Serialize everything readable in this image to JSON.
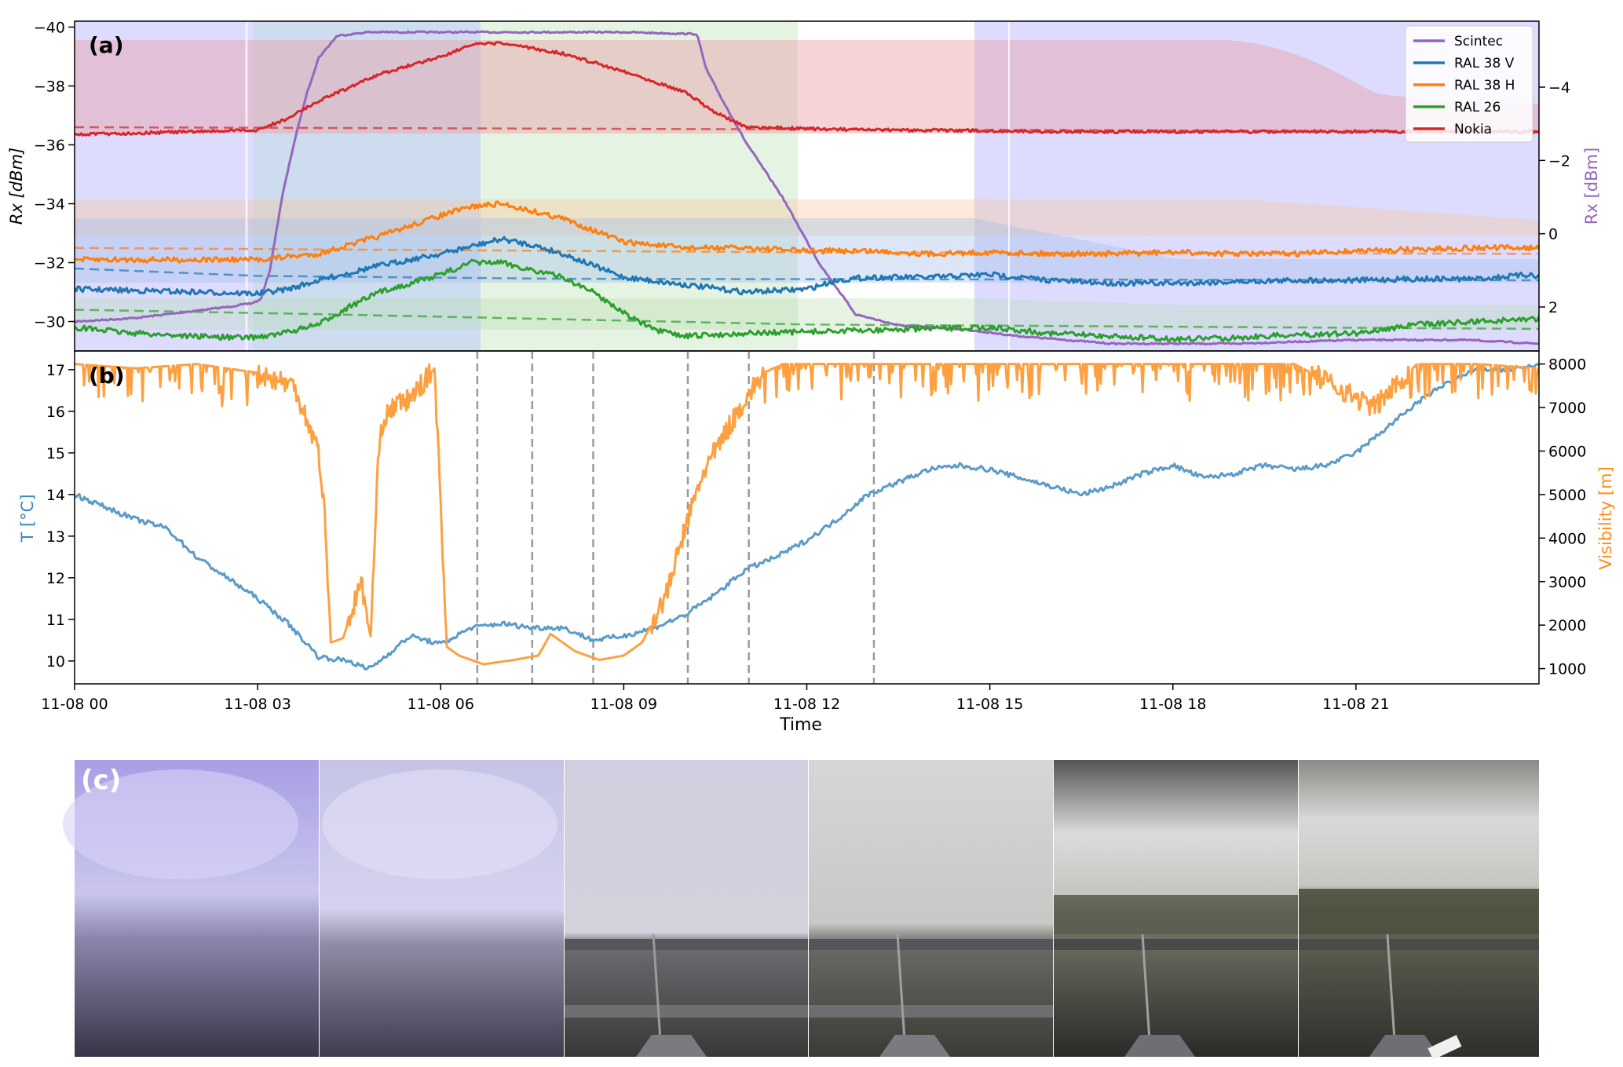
{
  "chart_data": [
    {
      "panel_label": "(a)",
      "type": "line",
      "xlim": [
        "11-08 00:00",
        "11-09 00:00"
      ],
      "ylim_left": [
        -29,
        -40.2
      ],
      "ylim_right": [
        3.2,
        -5.8
      ],
      "ylabel_left": "Rx [dBm]",
      "ylabel_right": "Rx [dBm]",
      "yticks_left": [
        -40,
        -38,
        -36,
        -34,
        -32,
        -30
      ],
      "yticks_right": [
        -4,
        -2,
        0,
        2
      ],
      "legend": {
        "placement": "top-right",
        "entries": [
          "Scintec",
          "RAL 38 V",
          "RAL 38 H",
          "RAL 26",
          "Nokia"
        ]
      },
      "series": [
        {
          "name": "Scintec",
          "axis": "right",
          "color": "#9467bd",
          "x": [
            0,
            1,
            2,
            2.5,
            2.9,
            3.05,
            3.2,
            3.4,
            3.6,
            3.8,
            4.0,
            4.3,
            4.8,
            6,
            7,
            8,
            9,
            10.2,
            10.35,
            10.6,
            11,
            11.6,
            12.2,
            12.8,
            13.5,
            14.5,
            15.5,
            17,
            19,
            21,
            22.8,
            24
          ],
          "y": [
            2.4,
            2.3,
            2.1,
            2.0,
            1.9,
            1.8,
            1.0,
            -1.0,
            -2.5,
            -3.8,
            -4.8,
            -5.4,
            -5.5,
            -5.5,
            -5.5,
            -5.5,
            -5.5,
            -5.45,
            -4.5,
            -3.7,
            -2.5,
            -1.0,
            0.8,
            2.2,
            2.5,
            2.6,
            2.8,
            3.0,
            3.0,
            2.9,
            2.9,
            3.0
          ]
        },
        {
          "name": "RAL 38 V",
          "axis": "left",
          "color": "#1f77b4",
          "x": [
            0,
            1,
            2,
            3,
            3.5,
            4,
            5,
            6,
            6.5,
            7,
            7.5,
            8,
            8.5,
            9,
            10,
            11,
            12,
            12.5,
            13,
            14,
            15,
            16,
            17,
            18,
            19,
            20,
            21,
            22,
            23,
            23.9,
            24
          ],
          "y": [
            -31.1,
            -31.05,
            -31.0,
            -30.95,
            -31.1,
            -31.4,
            -31.9,
            -32.3,
            -32.55,
            -32.8,
            -32.6,
            -32.3,
            -31.9,
            -31.5,
            -31.25,
            -31.0,
            -31.1,
            -31.4,
            -31.5,
            -31.5,
            -31.6,
            -31.4,
            -31.3,
            -31.3,
            -31.35,
            -31.4,
            -31.4,
            -31.45,
            -31.45,
            -31.6,
            -31.5
          ]
        },
        {
          "name": "RAL 38 H",
          "axis": "left",
          "color": "#ff7f0e",
          "x": [
            0,
            1,
            2,
            3,
            4,
            5,
            6,
            6.5,
            7,
            8,
            8.5,
            9,
            10,
            11,
            12,
            13,
            14,
            15,
            16,
            17,
            18,
            19,
            20,
            21,
            22,
            23,
            24
          ],
          "y": [
            -32.1,
            -32.1,
            -32.1,
            -32.1,
            -32.3,
            -32.9,
            -33.6,
            -33.9,
            -34.0,
            -33.5,
            -33.1,
            -32.7,
            -32.5,
            -32.5,
            -32.4,
            -32.4,
            -32.3,
            -32.35,
            -32.3,
            -32.3,
            -32.35,
            -32.3,
            -32.3,
            -32.4,
            -32.45,
            -32.5,
            -32.5
          ]
        },
        {
          "name": "RAL 26",
          "axis": "left",
          "color": "#2ca02c",
          "x": [
            0,
            1,
            2,
            2.8,
            3.3,
            4,
            4.5,
            5,
            6,
            6.5,
            7,
            8,
            8.5,
            9,
            9.5,
            10,
            11,
            12,
            13,
            14,
            15,
            16,
            17,
            18,
            19,
            20,
            21,
            22,
            23,
            24
          ],
          "y": [
            -29.8,
            -29.6,
            -29.5,
            -29.45,
            -29.55,
            -29.9,
            -30.5,
            -31.0,
            -31.6,
            -32.0,
            -32.0,
            -31.5,
            -31.0,
            -30.3,
            -29.7,
            -29.5,
            -29.6,
            -29.65,
            -29.7,
            -29.75,
            -29.8,
            -29.6,
            -29.5,
            -29.4,
            -29.45,
            -29.55,
            -29.6,
            -29.9,
            -30.0,
            -30.1
          ]
        },
        {
          "name": "Nokia",
          "axis": "left",
          "color": "#d62728",
          "x": [
            0,
            1,
            2,
            3,
            3.5,
            4,
            5,
            6,
            6.5,
            7,
            8,
            9,
            10,
            10.5,
            11,
            12,
            13,
            14,
            16,
            18,
            20,
            22,
            24
          ],
          "y": [
            -36.35,
            -36.4,
            -36.45,
            -36.5,
            -36.9,
            -37.5,
            -38.4,
            -39.0,
            -39.4,
            -39.45,
            -39.1,
            -38.5,
            -37.8,
            -37.1,
            -36.6,
            -36.55,
            -36.5,
            -36.5,
            -36.45,
            -36.45,
            -36.45,
            -36.45,
            -36.45
          ]
        }
      ]
    },
    {
      "panel_label": "(b)",
      "type": "line",
      "xlim": [
        "11-08 00:00",
        "11-09 00:00"
      ],
      "xlabel": "Time",
      "xticks": [
        "11-08 00",
        "11-08 03",
        "11-08 06",
        "11-08 09",
        "11-08 12",
        "11-08 15",
        "11-08 18",
        "11-08 21"
      ],
      "ylim_left": [
        9.45,
        17.45
      ],
      "ylim_right": [
        650,
        8300
      ],
      "ylabel_left": "T [°C]",
      "ylabel_right": "Visibility [m]",
      "yticks_left": [
        10,
        11,
        12,
        13,
        14,
        15,
        16,
        17
      ],
      "yticks_right": [
        1000,
        2000,
        3000,
        4000,
        5000,
        6000,
        7000,
        8000
      ],
      "vertical_markers": [
        6.6,
        7.5,
        8.5,
        10.05,
        11.05,
        13.1
      ],
      "series": [
        {
          "name": "T",
          "axis": "left",
          "color": "#5a9bc9",
          "x": [
            0,
            1,
            1.5,
            2,
            2.5,
            3,
            3.5,
            4,
            4.5,
            4.8,
            5,
            5.5,
            6,
            6.5,
            7,
            7.5,
            8,
            8.5,
            9,
            9.5,
            10,
            10.5,
            11,
            11.5,
            12,
            12.5,
            13,
            13.5,
            14,
            14.5,
            15,
            15.5,
            16,
            16.5,
            17,
            17.5,
            18,
            18.5,
            19,
            19.5,
            20,
            20.5,
            21,
            21.5,
            22,
            22.5,
            23,
            23.5,
            24
          ],
          "y": [
            14.0,
            13.4,
            13.2,
            12.5,
            12.0,
            11.5,
            10.9,
            10.1,
            10.0,
            9.8,
            10.0,
            10.6,
            10.4,
            10.8,
            10.9,
            10.8,
            10.8,
            10.5,
            10.6,
            10.8,
            11.1,
            11.6,
            12.2,
            12.5,
            12.9,
            13.4,
            14.0,
            14.3,
            14.6,
            14.7,
            14.6,
            14.4,
            14.2,
            14.0,
            14.2,
            14.5,
            14.7,
            14.4,
            14.5,
            14.7,
            14.6,
            14.7,
            15.0,
            15.6,
            16.2,
            16.7,
            17.0,
            17.0,
            17.1
          ]
        },
        {
          "name": "Visibility",
          "axis": "right",
          "color": "#ffa040",
          "x": [
            0,
            1,
            2,
            3,
            3.6,
            4,
            4.1,
            4.2,
            4.4,
            4.7,
            4.85,
            5,
            5.2,
            5.5,
            5.9,
            6.1,
            6.3,
            6.7,
            7.2,
            7.6,
            7.8,
            8.2,
            8.6,
            9,
            9.3,
            9.7,
            10,
            10.3,
            10.7,
            11,
            11.3,
            11.6,
            12,
            13,
            14,
            16,
            18,
            20,
            21.3,
            22,
            23,
            24
          ],
          "y": [
            8000,
            7900,
            8000,
            7800,
            7500,
            6000,
            4500,
            1600,
            1700,
            3000,
            1700,
            6500,
            7000,
            7200,
            7900,
            1500,
            1300,
            1100,
            1200,
            1300,
            1800,
            1400,
            1200,
            1300,
            1600,
            2700,
            4200,
            5500,
            6500,
            7200,
            7800,
            8000,
            8000,
            8000,
            8000,
            8000,
            8000,
            8000,
            7000,
            8000,
            8000,
            7900
          ]
        }
      ]
    },
    {
      "panel_label": "(c)",
      "type": "image_strip",
      "frames": 6
    }
  ],
  "colors": {
    "fog_band": "#dddcff",
    "nokia_band": "#f0c0c0",
    "blue_band": "#c8d8ec",
    "green_band": "#d8eed6",
    "grid_dash": "#9a9a9a"
  }
}
